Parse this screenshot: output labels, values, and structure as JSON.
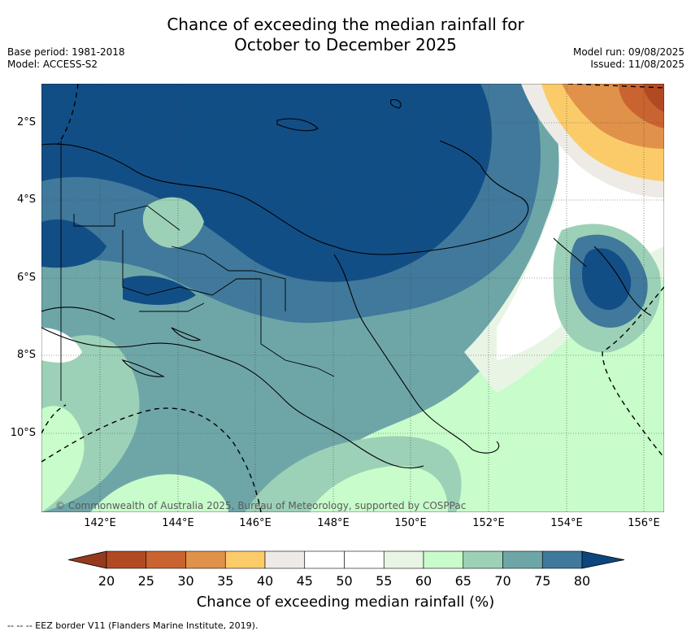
{
  "header": {
    "title_line1": "Chance of exceeding the median rainfall for",
    "title_line2": "October to December 2025",
    "base_period": "Base period: 1981-2018",
    "model": "Model: ACCESS-S2",
    "model_run": "Model run: 09/08/2025",
    "issued": "Issued: 11/08/2025"
  },
  "map": {
    "copyright": "© Commonwealth of Australia 2025, Bureau of Meteorology, supported by COSPPac",
    "lat_labels": [
      "2°S",
      "4°S",
      "6°S",
      "8°S",
      "10°S"
    ],
    "lon_labels": [
      "142°E",
      "144°E",
      "146°E",
      "148°E",
      "150°E",
      "152°E",
      "154°E",
      "156°E"
    ]
  },
  "colorbar": {
    "title": "Chance of exceeding median rainfall (%)",
    "ticks": [
      "20",
      "25",
      "30",
      "35",
      "40",
      "45",
      "50",
      "55",
      "60",
      "65",
      "70",
      "75",
      "80"
    ],
    "colors": [
      "#b14a22",
      "#c96330",
      "#e0914a",
      "#fbcb6a",
      "#eeebe6",
      "#ffffff",
      "#ffffff",
      "#e8f5e4",
      "#c8fccb",
      "#9cd1b7",
      "#6ea6a8",
      "#40799b",
      "#124e86"
    ],
    "under_color": "#963a1c",
    "over_color": "#0c467e"
  },
  "footer": {
    "legend": "-- -- -- EEZ border V11 (Flanders Marine Institute, 2019)."
  }
}
